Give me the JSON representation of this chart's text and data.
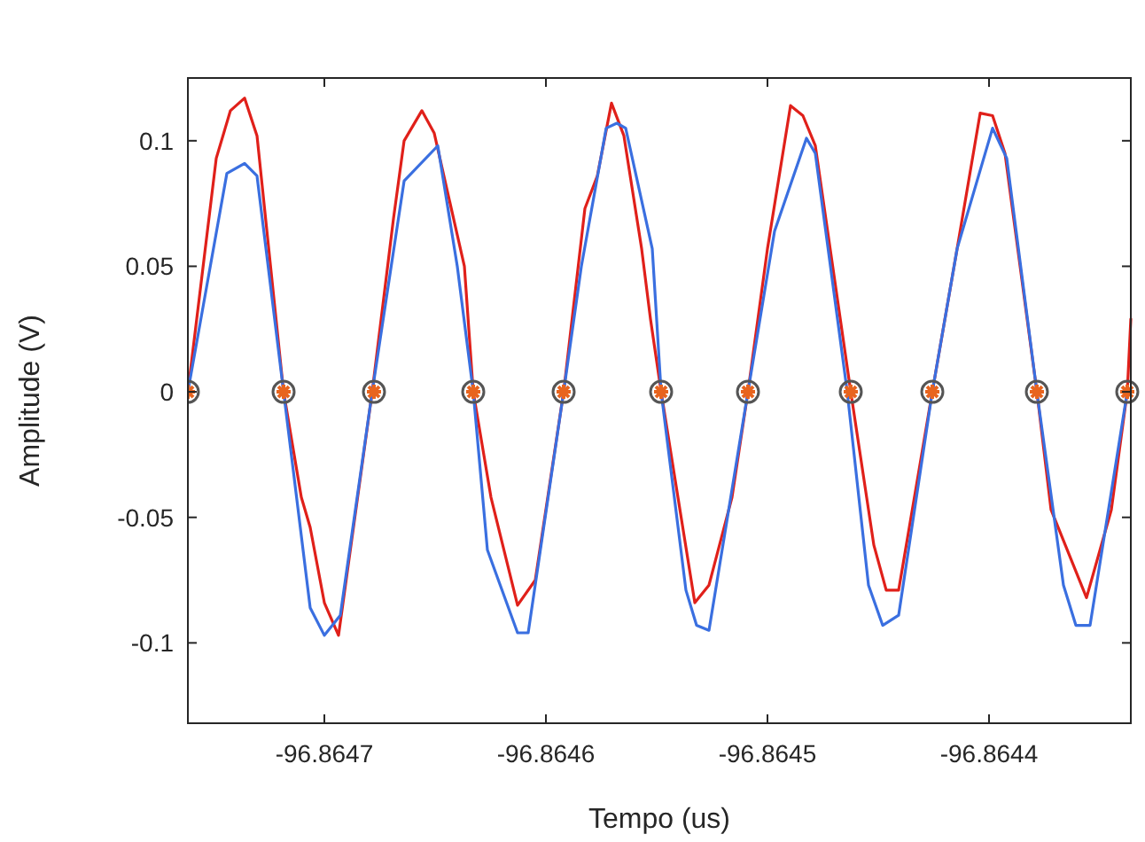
{
  "chart_data": {
    "type": "line",
    "xlabel": "Tempo (us)",
    "ylabel": "Amplitude (V)",
    "xlim": [
      -96.8647616,
      -96.864336
    ],
    "ylim": [
      -0.132,
      0.125
    ],
    "xticks": [
      -96.8647,
      -96.8646,
      -96.8645,
      -96.8644
    ],
    "yticks": [
      -0.1,
      -0.05,
      0,
      0.05,
      0.1
    ],
    "grid": false,
    "line_style": "solid",
    "marker": "none",
    "series": [
      {
        "type": "line",
        "color": "#e0201a",
        "x": [
          -96.8647616,
          -96.8647488,
          -96.8647424,
          -96.864736,
          -96.8647304,
          -96.8647184,
          -96.8647104,
          -96.8647064,
          -96.8647,
          -96.8646936,
          -96.8646784,
          -96.8646688,
          -96.864664,
          -96.864656,
          -96.8646504,
          -96.8646368,
          -96.8646328,
          -96.8646248,
          -96.8646128,
          -96.8646048,
          -96.864592,
          -96.8645824,
          -96.8645768,
          -96.8645704,
          -96.8645648,
          -96.8645568,
          -96.8645528,
          -96.864548,
          -96.8645328,
          -96.8645264,
          -96.864516,
          -96.8645088,
          -96.8645,
          -96.8644896,
          -96.864484,
          -96.8644784,
          -96.8644624,
          -96.864452,
          -96.8644464,
          -96.8644408,
          -96.8644256,
          -96.8644144,
          -96.864404,
          -96.8643984,
          -96.8643928,
          -96.8643784,
          -96.864372,
          -96.864356,
          -96.8643448,
          -96.8643376,
          -96.864336
        ],
        "values": [
          0,
          0.093,
          0.112,
          0.117,
          0.102,
          0,
          -0.042,
          -0.054,
          -0.084,
          -0.097,
          0,
          0.069,
          0.1,
          0.112,
          0.103,
          0.05,
          0,
          -0.042,
          -0.085,
          -0.075,
          0,
          0.073,
          0.086,
          0.115,
          0.102,
          0.057,
          0.029,
          0,
          -0.084,
          -0.077,
          -0.042,
          0,
          0.057,
          0.114,
          0.11,
          0.098,
          0,
          -0.061,
          -0.079,
          -0.079,
          0,
          0.057,
          0.111,
          0.11,
          0.095,
          0,
          -0.047,
          -0.082,
          -0.047,
          0,
          0.029
        ]
      },
      {
        "type": "line",
        "color": "#3a6fe0",
        "x": [
          -96.8647616,
          -96.864744,
          -96.864736,
          -96.8647304,
          -96.8647184,
          -96.8647064,
          -96.8647,
          -96.8646928,
          -96.8646784,
          -96.864664,
          -96.8646488,
          -96.86464,
          -96.8646328,
          -96.8646264,
          -96.8646128,
          -96.864608,
          -96.864592,
          -96.864584,
          -96.8645728,
          -96.864568,
          -96.864564,
          -96.864552,
          -96.864548,
          -96.8645368,
          -96.864532,
          -96.8645264,
          -96.8645088,
          -96.8644968,
          -96.8644824,
          -96.8644784,
          -96.864464,
          -96.8644544,
          -96.864448,
          -96.8644408,
          -96.8644256,
          -96.8644144,
          -96.8643984,
          -96.864392,
          -96.8643784,
          -96.8643664,
          -96.8643608,
          -96.8643544,
          -96.8643376
        ],
        "values": [
          0,
          0.087,
          0.091,
          0.086,
          0,
          -0.086,
          -0.097,
          -0.089,
          0,
          0.084,
          0.098,
          0.05,
          0,
          -0.063,
          -0.096,
          -0.096,
          0,
          0.05,
          0.105,
          0.107,
          0.105,
          0.057,
          0,
          -0.079,
          -0.093,
          -0.095,
          0,
          0.064,
          0.101,
          0.095,
          0,
          -0.077,
          -0.093,
          -0.089,
          0,
          0.057,
          0.105,
          0.093,
          0,
          -0.077,
          -0.093,
          -0.093,
          0
        ]
      },
      {
        "type": "scatter",
        "color": "#555555",
        "marker": "circle",
        "x": [
          -96.8647616,
          -96.8647184,
          -96.8646776,
          -96.8646328,
          -96.864592,
          -96.864548,
          -96.8645088,
          -96.8644624,
          -96.8644256,
          -96.8643784,
          -96.8643376
        ],
        "values": [
          0,
          0,
          0,
          0,
          0,
          0,
          0,
          0,
          0,
          0,
          0
        ]
      },
      {
        "type": "scatter",
        "color": "#e8641e",
        "marker": "cross",
        "x": [
          -96.8647616,
          -96.8647184,
          -96.8646776,
          -96.8646328,
          -96.864592,
          -96.864548,
          -96.8645088,
          -96.8644624,
          -96.8644256,
          -96.8643784,
          -96.8643376
        ],
        "values": [
          0,
          0,
          0,
          0,
          0,
          0,
          0,
          0,
          0,
          0,
          0
        ]
      }
    ]
  }
}
